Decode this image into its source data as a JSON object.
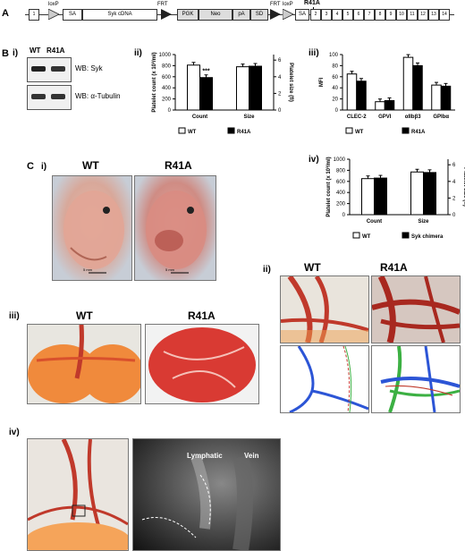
{
  "panel_labels": {
    "A": "A",
    "B": "B",
    "C": "C"
  },
  "sub_labels": {
    "Bi": "i)",
    "Bii": "ii)",
    "Biii": "iii)",
    "Biv": "iv)",
    "Ci": "i)",
    "Cii": "ii)",
    "Ciii": "iii)",
    "Civ": "iv)"
  },
  "construct": {
    "loxP1": "loxP",
    "SA1": "SA",
    "cdna": "Syk cDNA",
    "FRT1": "FRT",
    "PGK": "PGK",
    "Neo": "Neo",
    "pA": "pA",
    "SD": "SD",
    "FRT2": "FRT",
    "loxP2": "loxP",
    "SA2": "SA",
    "mut": "R41A",
    "exon1": "1",
    "exons": [
      "2",
      "3",
      "4",
      "5",
      "6",
      "7",
      "8",
      "9",
      "10",
      "11",
      "12",
      "13",
      "14"
    ]
  },
  "western": {
    "wt": "WT",
    "r41a": "R41A",
    "syk": "WB:  Syk",
    "tub": "WB:  α-Tubulin"
  },
  "chart_data": [
    {
      "type": "bar",
      "panel": "B ii",
      "categories": [
        "Count",
        "Size"
      ],
      "series": [
        {
          "name": "WT",
          "values": [
            810,
            780
          ]
        },
        {
          "name": "R41A",
          "values": [
            585,
            790
          ]
        }
      ],
      "ylabel": "Platelet count (x 10³/ml)",
      "y2label": "Platelet size (fl)",
      "ylim": [
        0,
        1000
      ],
      "yticks": [
        "0",
        "200",
        "400",
        "600",
        "800",
        "1000"
      ],
      "y2ticks": [
        "0",
        "2",
        "4",
        "6"
      ],
      "annotation": "***",
      "legend": [
        "WT",
        "R41A"
      ]
    },
    {
      "type": "bar",
      "panel": "B iii",
      "categories": [
        "CLEC-2",
        "GPVI",
        "αIIbβ3",
        "GPIbα"
      ],
      "series": [
        {
          "name": "WT",
          "values": [
            65,
            15,
            95,
            45
          ]
        },
        {
          "name": "R41A",
          "values": [
            52,
            17,
            80,
            43
          ]
        }
      ],
      "ylabel": "MFI",
      "ylim": [
        0,
        100
      ],
      "yticks": [
        "0",
        "20",
        "40",
        "60",
        "80",
        "100"
      ],
      "legend": [
        "WT",
        "R41A"
      ]
    },
    {
      "type": "bar",
      "panel": "B iv",
      "categories": [
        "Count",
        "Size"
      ],
      "series": [
        {
          "name": "WT",
          "values": [
            650,
            770
          ]
        },
        {
          "name": "Syk chimera",
          "values": [
            660,
            760
          ]
        }
      ],
      "ylabel": "Platelet count (x 10³/ml)",
      "y2label": "Platelet size (fl)",
      "ylim": [
        0,
        1000
      ],
      "yticks": [
        "0",
        "200",
        "400",
        "600",
        "800",
        "1000"
      ],
      "y2ticks": [
        "0",
        "2",
        "4",
        "6"
      ],
      "legend": [
        "WT",
        "Syk chimera"
      ]
    }
  ],
  "photos": {
    "ci_wt": "WT",
    "ci_r41a": "R41A",
    "ci_scale1": "5 mm",
    "ci_scale2": "5 mm",
    "cii_wt": "WT",
    "cii_r41a": "R41A",
    "ciii_wt": "WT",
    "ciii_r41a": "R41A",
    "civ_lymph": "Lymphatic",
    "civ_vein": "Vein"
  },
  "colors": {
    "vessel": "#c0392b",
    "trace_blue": "#2c55d6",
    "trace_green": "#3cb043"
  }
}
